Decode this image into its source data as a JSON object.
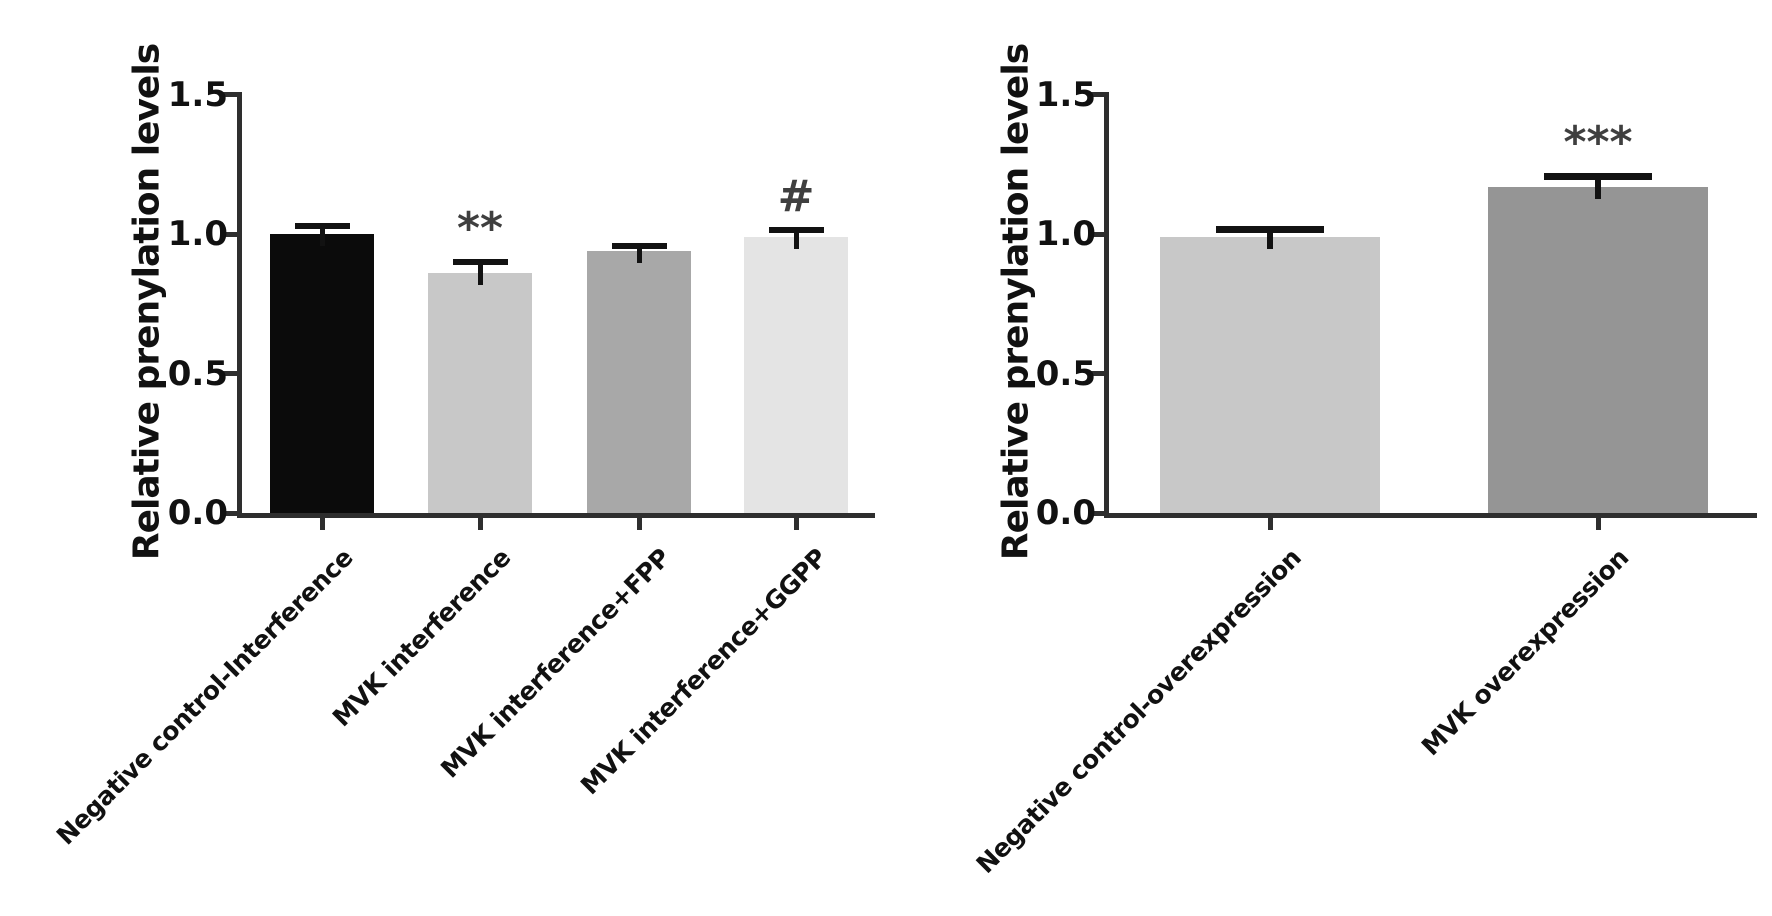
{
  "chart_data": [
    {
      "type": "bar",
      "panel": "left",
      "title": "",
      "xlabel": "",
      "ylabel": "Relative prenylation levels",
      "ylim": [
        0,
        1.5
      ],
      "yticks": [
        0,
        0.5,
        1.0,
        1.5
      ],
      "ytick_labels": [
        "0.0",
        "0.5",
        "1.0",
        "1.5"
      ],
      "grid": false,
      "legend": "none",
      "categories": [
        "Negative control-Interference",
        "MVK interference",
        "MVK interference+FPP",
        "MVK interference+GGPP"
      ],
      "values": [
        1.0,
        0.86,
        0.94,
        0.99
      ],
      "errors": [
        0.04,
        0.05,
        0.03,
        0.035
      ],
      "error_direction": "upper",
      "annotations": [
        "",
        "**",
        "",
        "#"
      ],
      "bar_colors": [
        "#0b0b0b",
        "#c8c8c8",
        "#a8a8a8",
        "#e4e4e4"
      ]
    },
    {
      "type": "bar",
      "panel": "right",
      "title": "",
      "xlabel": "",
      "ylabel": "Relative prenylation levels",
      "ylim": [
        0,
        1.5
      ],
      "yticks": [
        0,
        0.5,
        1.0,
        1.5
      ],
      "ytick_labels": [
        "0.0",
        "0.5",
        "1.0",
        "1.5"
      ],
      "grid": false,
      "legend": "none",
      "categories": [
        "Negative control-overexpression",
        "MVK overexpression"
      ],
      "values": [
        0.99,
        1.17
      ],
      "errors": [
        0.04,
        0.05
      ],
      "error_direction": "upper",
      "annotations": [
        "",
        "***"
      ],
      "bar_colors": [
        "#c8c8c8",
        "#959595"
      ]
    }
  ],
  "colors": {
    "background": "#ffffff",
    "axis": "#2e2e2e",
    "text": "#111111",
    "error_bar": "#121212",
    "annotation": "#3f3f3f"
  }
}
